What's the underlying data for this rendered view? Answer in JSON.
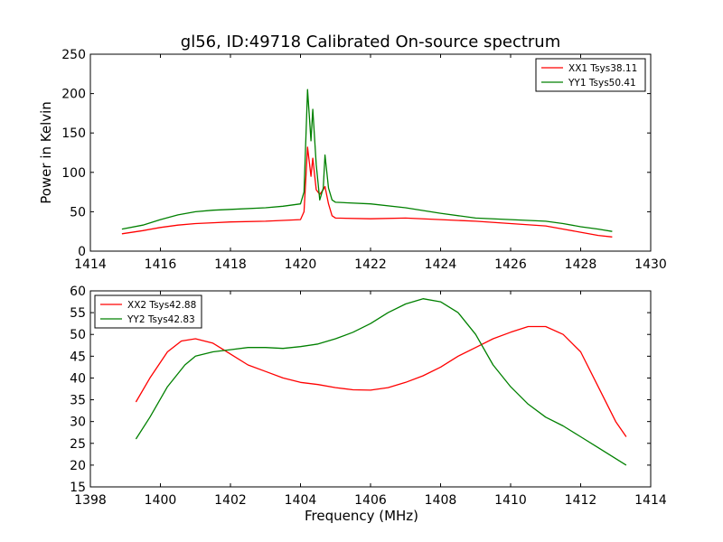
{
  "figure": {
    "title": "gl56, ID:49718 Calibrated On-source spectrum"
  },
  "chart_data": [
    {
      "type": "line",
      "title": "gl56, ID:49718 Calibrated On-source spectrum",
      "xlabel": "",
      "ylabel": "Power in Kelvin",
      "xlim": [
        1414,
        1430
      ],
      "ylim": [
        0,
        250
      ],
      "xticks": [
        "1414",
        "1416",
        "1418",
        "1420",
        "1422",
        "1424",
        "1426",
        "1428",
        "1430"
      ],
      "yticks": [
        "0",
        "50",
        "100",
        "150",
        "200",
        "250"
      ],
      "grid": false,
      "legend_position": "top-right",
      "series": [
        {
          "name": "XX1 Tsys38.11",
          "color": "#ff0000",
          "points": [
            [
              1414.9,
              22
            ],
            [
              1415.5,
              26
            ],
            [
              1416,
              30
            ],
            [
              1416.5,
              33
            ],
            [
              1417,
              35
            ],
            [
              1417.5,
              36
            ],
            [
              1418,
              37
            ],
            [
              1419,
              38
            ],
            [
              1419.5,
              39
            ],
            [
              1420,
              40
            ],
            [
              1420.1,
              50
            ],
            [
              1420.2,
              132
            ],
            [
              1420.3,
              95
            ],
            [
              1420.35,
              118
            ],
            [
              1420.45,
              78
            ],
            [
              1420.55,
              72
            ],
            [
              1420.65,
              78
            ],
            [
              1420.7,
              82
            ],
            [
              1420.8,
              60
            ],
            [
              1420.9,
              45
            ],
            [
              1421,
              42
            ],
            [
              1422,
              41
            ],
            [
              1423,
              42
            ],
            [
              1424,
              40
            ],
            [
              1425,
              38
            ],
            [
              1426,
              35
            ],
            [
              1427,
              32
            ],
            [
              1427.5,
              28
            ],
            [
              1428,
              24
            ],
            [
              1428.5,
              20
            ],
            [
              1428.9,
              18
            ]
          ]
        },
        {
          "name": "YY1 Tsys50.41",
          "color": "#008000",
          "points": [
            [
              1414.9,
              28
            ],
            [
              1415.5,
              33
            ],
            [
              1416,
              40
            ],
            [
              1416.5,
              46
            ],
            [
              1417,
              50
            ],
            [
              1417.5,
              52
            ],
            [
              1418,
              53
            ],
            [
              1419,
              55
            ],
            [
              1419.5,
              57
            ],
            [
              1420,
              60
            ],
            [
              1420.1,
              75
            ],
            [
              1420.2,
              205
            ],
            [
              1420.3,
              140
            ],
            [
              1420.35,
              180
            ],
            [
              1420.45,
              110
            ],
            [
              1420.55,
              65
            ],
            [
              1420.65,
              80
            ],
            [
              1420.7,
              122
            ],
            [
              1420.8,
              80
            ],
            [
              1420.9,
              65
            ],
            [
              1421,
              62
            ],
            [
              1422,
              60
            ],
            [
              1423,
              55
            ],
            [
              1424,
              48
            ],
            [
              1425,
              42
            ],
            [
              1426,
              40
            ],
            [
              1427,
              38
            ],
            [
              1427.5,
              35
            ],
            [
              1428,
              31
            ],
            [
              1428.5,
              28
            ],
            [
              1428.9,
              25
            ]
          ]
        }
      ]
    },
    {
      "type": "line",
      "title": "",
      "xlabel": "Frequency (MHz)",
      "ylabel": "",
      "xlim": [
        1398,
        1414
      ],
      "ylim": [
        15,
        60
      ],
      "xticks": [
        "1398",
        "1400",
        "1402",
        "1404",
        "1406",
        "1408",
        "1410",
        "1412",
        "1414"
      ],
      "yticks": [
        "15",
        "20",
        "25",
        "30",
        "35",
        "40",
        "45",
        "50",
        "55",
        "60"
      ],
      "grid": false,
      "legend_position": "top-left",
      "series": [
        {
          "name": "XX2 Tsys42.88",
          "color": "#ff0000",
          "points": [
            [
              1399.3,
              34.5
            ],
            [
              1399.7,
              40
            ],
            [
              1400.2,
              46
            ],
            [
              1400.6,
              48.5
            ],
            [
              1401,
              49
            ],
            [
              1401.5,
              48
            ],
            [
              1402,
              45.5
            ],
            [
              1402.5,
              43
            ],
            [
              1403,
              41.5
            ],
            [
              1403.5,
              40
            ],
            [
              1404,
              39
            ],
            [
              1404.5,
              38.5
            ],
            [
              1405,
              37.8
            ],
            [
              1405.5,
              37.3
            ],
            [
              1406,
              37.2
            ],
            [
              1406.5,
              37.8
            ],
            [
              1407,
              39
            ],
            [
              1407.5,
              40.5
            ],
            [
              1408,
              42.5
            ],
            [
              1408.5,
              45
            ],
            [
              1409,
              47
            ],
            [
              1409.5,
              49
            ],
            [
              1410,
              50.5
            ],
            [
              1410.5,
              51.8
            ],
            [
              1411,
              51.8
            ],
            [
              1411.5,
              50
            ],
            [
              1412,
              46
            ],
            [
              1412.5,
              38
            ],
            [
              1413,
              30
            ],
            [
              1413.3,
              26.5
            ]
          ]
        },
        {
          "name": "YY2 Tsys42.83",
          "color": "#008000",
          "points": [
            [
              1399.3,
              26
            ],
            [
              1399.7,
              31
            ],
            [
              1400.2,
              38
            ],
            [
              1400.7,
              43
            ],
            [
              1401,
              45
            ],
            [
              1401.5,
              46
            ],
            [
              1402,
              46.5
            ],
            [
              1402.5,
              47
            ],
            [
              1403,
              47
            ],
            [
              1403.5,
              46.8
            ],
            [
              1404,
              47.2
            ],
            [
              1404.5,
              47.8
            ],
            [
              1405,
              49
            ],
            [
              1405.5,
              50.5
            ],
            [
              1406,
              52.5
            ],
            [
              1406.5,
              55
            ],
            [
              1407,
              57
            ],
            [
              1407.5,
              58.2
            ],
            [
              1408,
              57.5
            ],
            [
              1408.5,
              55
            ],
            [
              1409,
              50
            ],
            [
              1409.5,
              43
            ],
            [
              1410,
              38
            ],
            [
              1410.5,
              34
            ],
            [
              1411,
              31
            ],
            [
              1411.5,
              29
            ],
            [
              1412,
              26.5
            ],
            [
              1412.5,
              24
            ],
            [
              1413,
              21.5
            ],
            [
              1413.3,
              20
            ]
          ]
        }
      ]
    }
  ]
}
